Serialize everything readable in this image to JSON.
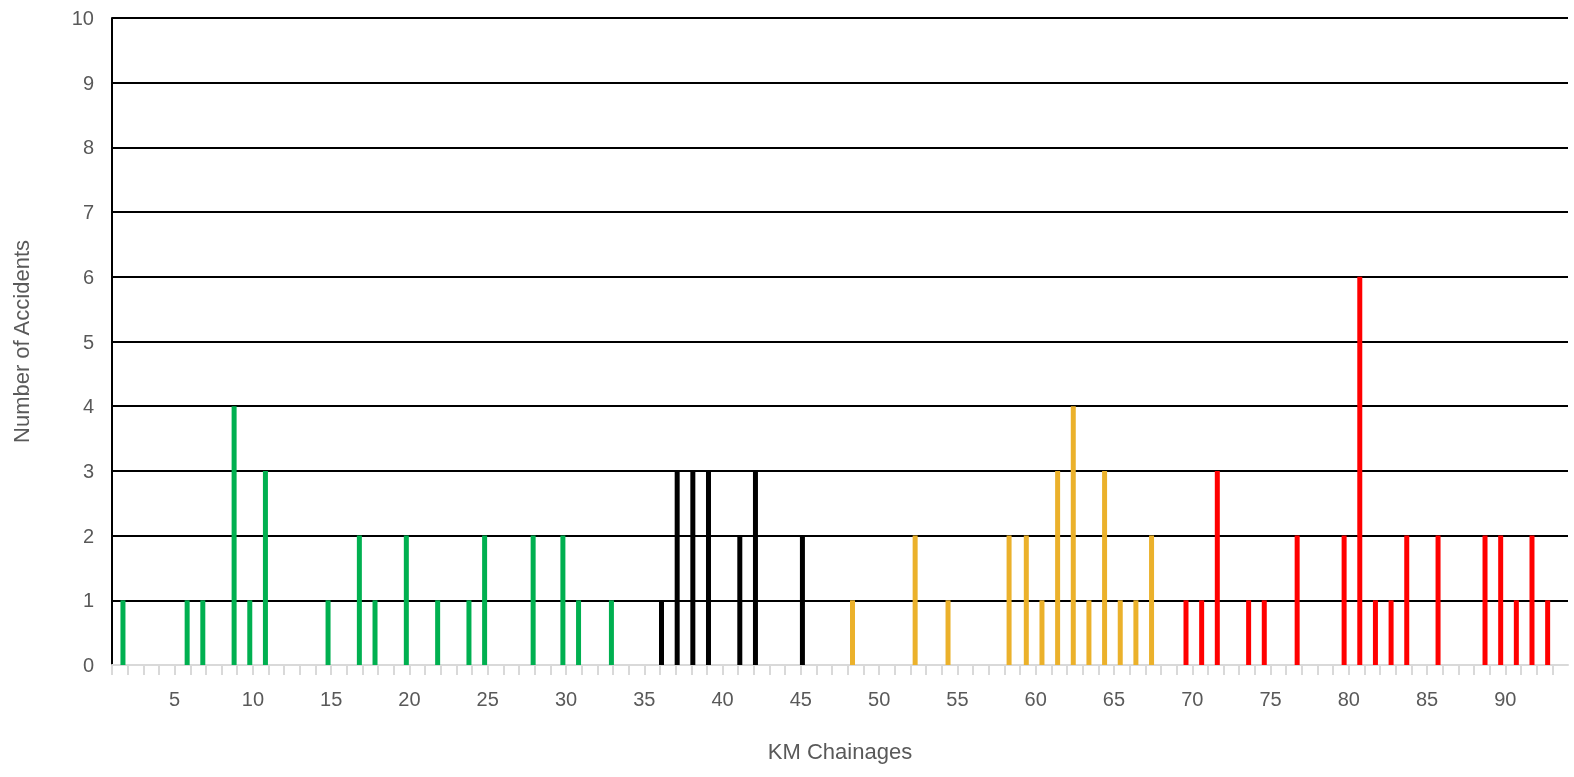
{
  "chart_data": {
    "type": "bar",
    "xlabel": "KM Chainages",
    "ylabel": "Number of Accidents",
    "xlim": [
      1,
      94
    ],
    "ylim": [
      0,
      10
    ],
    "yticks": [
      0,
      1,
      2,
      3,
      4,
      5,
      6,
      7,
      8,
      9,
      10
    ],
    "xticks": [
      {
        "value": 1,
        "label": null
      },
      {
        "value": 2,
        "label": null
      },
      {
        "value": 3,
        "label": null
      },
      {
        "value": 4,
        "label": null
      },
      5,
      {
        "value": 6,
        "label": null
      },
      {
        "value": 7,
        "label": null
      },
      {
        "value": 8,
        "label": null
      },
      {
        "value": 9,
        "label": null
      },
      10,
      {
        "value": 11,
        "label": null
      },
      {
        "value": 12,
        "label": null
      },
      {
        "value": 13,
        "label": null
      },
      {
        "value": 14,
        "label": null
      },
      15,
      {
        "value": 16,
        "label": null
      },
      {
        "value": 17,
        "label": null
      },
      {
        "value": 18,
        "label": null
      },
      {
        "value": 19,
        "label": null
      },
      20,
      {
        "value": 21,
        "label": null
      },
      {
        "value": 22,
        "label": null
      },
      {
        "value": 23,
        "label": null
      },
      {
        "value": 24,
        "label": null
      },
      25,
      {
        "value": 26,
        "label": null
      },
      {
        "value": 27,
        "label": null
      },
      {
        "value": 28,
        "label": null
      },
      {
        "value": 29,
        "label": null
      },
      30,
      {
        "value": 31,
        "label": null
      },
      {
        "value": 32,
        "label": null
      },
      {
        "value": 33,
        "label": null
      },
      {
        "value": 34,
        "label": null
      },
      35,
      {
        "value": 36,
        "label": null
      },
      {
        "value": 37,
        "label": null
      },
      {
        "value": 38,
        "label": null
      },
      {
        "value": 39,
        "label": null
      },
      40,
      {
        "value": 41,
        "label": null
      },
      {
        "value": 42,
        "label": null
      },
      {
        "value": 43,
        "label": null
      },
      {
        "value": 44,
        "label": null
      },
      45,
      {
        "value": 46,
        "label": null
      },
      {
        "value": 47,
        "label": null
      },
      {
        "value": 48,
        "label": null
      },
      {
        "value": 49,
        "label": null
      },
      50,
      {
        "value": 51,
        "label": null
      },
      {
        "value": 52,
        "label": null
      },
      {
        "value": 53,
        "label": null
      },
      {
        "value": 54,
        "label": null
      },
      55,
      {
        "value": 56,
        "label": null
      },
      {
        "value": 57,
        "label": null
      },
      {
        "value": 58,
        "label": null
      },
      {
        "value": 59,
        "label": null
      },
      60,
      {
        "value": 61,
        "label": null
      },
      {
        "value": 62,
        "label": null
      },
      {
        "value": 63,
        "label": null
      },
      {
        "value": 64,
        "label": null
      },
      65,
      {
        "value": 66,
        "label": null
      },
      {
        "value": 67,
        "label": null
      },
      {
        "value": 68,
        "label": null
      },
      {
        "value": 69,
        "label": null
      },
      70,
      {
        "value": 71,
        "label": null
      },
      {
        "value": 72,
        "label": null
      },
      {
        "value": 73,
        "label": null
      },
      {
        "value": 74,
        "label": null
      },
      75,
      {
        "value": 76,
        "label": null
      },
      {
        "value": 77,
        "label": null
      },
      {
        "value": 78,
        "label": null
      },
      {
        "value": 79,
        "label": null
      },
      80,
      {
        "value": 81,
        "label": null
      },
      {
        "value": 82,
        "label": null
      },
      {
        "value": 83,
        "label": null
      },
      {
        "value": 84,
        "label": null
      },
      85,
      {
        "value": 86,
        "label": null
      },
      {
        "value": 87,
        "label": null
      },
      {
        "value": 88,
        "label": null
      },
      {
        "value": 89,
        "label": null
      },
      90,
      {
        "value": 91,
        "label": null
      },
      {
        "value": 92,
        "label": null
      },
      {
        "value": 93,
        "label": null
      }
    ],
    "grid": "y",
    "series": [
      {
        "color": "#00b050",
        "x": [
          1.7,
          5.8,
          6.8,
          8.8,
          9.8,
          10.8,
          14.8,
          16.8,
          17.8,
          19.8,
          21.8,
          23.8,
          24.8,
          27.9,
          29.8,
          30.8,
          32.9
        ],
        "values": [
          1,
          1,
          1,
          4,
          1,
          3,
          1,
          2,
          1,
          2,
          1,
          1,
          2,
          2,
          2,
          1,
          1
        ]
      },
      {
        "color": "#000000",
        "x": [
          36.1,
          37.1,
          38.1,
          39.1,
          41.1,
          42.1,
          45.1
        ],
        "values": [
          1,
          3,
          3,
          3,
          2,
          3,
          2
        ]
      },
      {
        "color": "#ebb12b",
        "x": [
          48.3,
          52.3,
          54.4,
          58.3,
          59.4,
          60.4,
          61.4,
          62.4,
          63.4,
          64.4,
          65.4,
          66.4,
          67.4
        ],
        "values": [
          1,
          2,
          1,
          2,
          2,
          1,
          3,
          4,
          1,
          3,
          1,
          1,
          2
        ]
      },
      {
        "color": "#ff0000",
        "x": [
          69.6,
          70.6,
          71.6,
          73.6,
          74.6,
          76.7,
          79.7,
          80.7,
          81.7,
          82.7,
          83.7,
          85.7,
          88.7,
          89.7,
          90.7,
          91.7,
          92.7
        ],
        "values": [
          1,
          1,
          3,
          1,
          1,
          2,
          2,
          6,
          1,
          1,
          2,
          2,
          2,
          2,
          1,
          2,
          1
        ]
      }
    ]
  }
}
